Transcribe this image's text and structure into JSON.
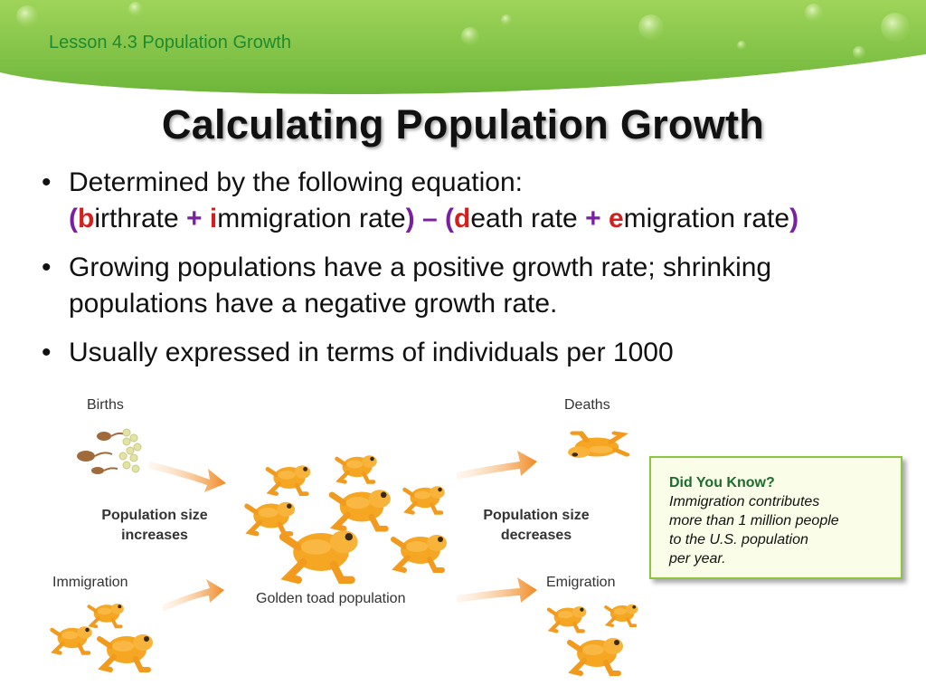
{
  "header": {
    "lesson": "Lesson 4.3 Population Growth"
  },
  "title": "Calculating Population Growth",
  "bullets": {
    "b1_text": "Determined by the following equation:",
    "eq": {
      "p1": "(",
      "b": "b",
      "p2": "irthrate ",
      "plus1": "+",
      "i": " i",
      "p3": "mmigration rate",
      "p4": ") – (",
      "d": "d",
      "p5": "eath rate ",
      "plus2": "+",
      "e": " e",
      "p6": "migration rate",
      "p7": ")"
    },
    "b2_text": "Growing populations have a positive growth rate; shrinking populations have a negative growth rate.",
    "b3_text": "Usually expressed in terms of individuals per 1000",
    "dot": "•"
  },
  "diagram": {
    "births": "Births",
    "deaths": "Deaths",
    "immigration": "Immigration",
    "emigration": "Emigration",
    "increase_l1": "Population size",
    "increase_l2": "increases",
    "decrease_l1": "Population size",
    "decrease_l2": "decreases",
    "population": "Golden toad population"
  },
  "callout": {
    "heading": "Did You Know?",
    "l1": "Immigration contributes",
    "l2": "more than 1 million people",
    "l3": "to the U.S. population",
    "l4": "per year."
  },
  "colors": {
    "banner": "#7cc242",
    "lesson_text": "#1f8a2e",
    "purple": "#7b1fa2",
    "red": "#d3201f",
    "toad": "#f5a623",
    "arrow": "#f08a24"
  }
}
